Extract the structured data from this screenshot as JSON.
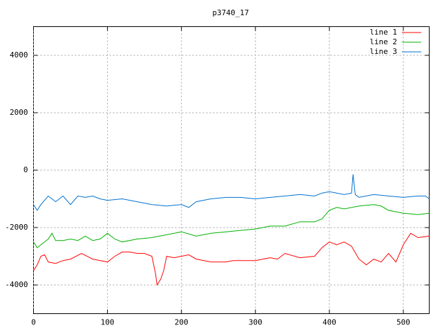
{
  "chart_data": {
    "type": "line",
    "title": "p3740_17",
    "xlim": [
      0,
      535
    ],
    "xticks": [
      0,
      100,
      200,
      300,
      400,
      500
    ],
    "ylim": [
      -5000,
      5000
    ],
    "yticks": [
      -4000,
      -2000,
      0,
      2000,
      4000
    ],
    "grid": true,
    "legend": "top-right",
    "series": [
      {
        "name": "line 1",
        "color": "#ff0000",
        "x": [
          0,
          5,
          10,
          15,
          20,
          30,
          40,
          50,
          65,
          80,
          90,
          100,
          110,
          120,
          130,
          140,
          150,
          160,
          165,
          167,
          172,
          176,
          180,
          190,
          200,
          210,
          220,
          240,
          260,
          270,
          290,
          300,
          320,
          330,
          340,
          360,
          380,
          390,
          400,
          410,
          420,
          430,
          440,
          450,
          460,
          470,
          480,
          490,
          500,
          510,
          520,
          535
        ],
        "values": [
          -3500,
          -3300,
          -3000,
          -2950,
          -3200,
          -3250,
          -3150,
          -3100,
          -2900,
          -3100,
          -3150,
          -3200,
          -3000,
          -2850,
          -2850,
          -2900,
          -2900,
          -3000,
          -3600,
          -4000,
          -3800,
          -3500,
          -3000,
          -3050,
          -3000,
          -2950,
          -3100,
          -3200,
          -3200,
          -3150,
          -3150,
          -3150,
          -3050,
          -3100,
          -2900,
          -3050,
          -3000,
          -2700,
          -2500,
          -2600,
          -2500,
          -2650,
          -3100,
          -3300,
          -3100,
          -3200,
          -2900,
          -3200,
          -2600,
          -2200,
          -2350,
          -2300
        ]
      },
      {
        "name": "line 2",
        "color": "#00b000",
        "x": [
          0,
          5,
          10,
          20,
          25,
          30,
          40,
          50,
          60,
          70,
          80,
          90,
          100,
          110,
          120,
          140,
          160,
          180,
          200,
          220,
          240,
          260,
          280,
          300,
          320,
          340,
          360,
          380,
          390,
          400,
          410,
          420,
          440,
          460,
          470,
          480,
          490,
          500,
          520,
          535
        ],
        "values": [
          -2500,
          -2700,
          -2600,
          -2400,
          -2200,
          -2450,
          -2450,
          -2400,
          -2450,
          -2300,
          -2450,
          -2400,
          -2200,
          -2400,
          -2500,
          -2400,
          -2350,
          -2250,
          -2150,
          -2300,
          -2200,
          -2150,
          -2100,
          -2050,
          -1950,
          -1950,
          -1800,
          -1800,
          -1700,
          -1400,
          -1300,
          -1350,
          -1250,
          -1200,
          -1250,
          -1400,
          -1450,
          -1500,
          -1550,
          -1500
        ]
      },
      {
        "name": "line 3",
        "color": "#0070d0",
        "x": [
          0,
          5,
          10,
          20,
          30,
          40,
          50,
          60,
          70,
          80,
          90,
          100,
          120,
          140,
          160,
          180,
          200,
          210,
          220,
          240,
          260,
          280,
          300,
          320,
          340,
          360,
          380,
          390,
          400,
          420,
          430,
          432,
          435,
          440,
          460,
          480,
          500,
          520,
          530,
          535
        ],
        "values": [
          -1200,
          -1400,
          -1200,
          -900,
          -1100,
          -900,
          -1200,
          -900,
          -950,
          -900,
          -1000,
          -1050,
          -1000,
          -1100,
          -1200,
          -1250,
          -1200,
          -1300,
          -1100,
          -1000,
          -950,
          -950,
          -1000,
          -950,
          -900,
          -850,
          -900,
          -800,
          -750,
          -850,
          -800,
          -150,
          -850,
          -950,
          -850,
          -900,
          -950,
          -900,
          -900,
          -1000
        ]
      }
    ]
  }
}
